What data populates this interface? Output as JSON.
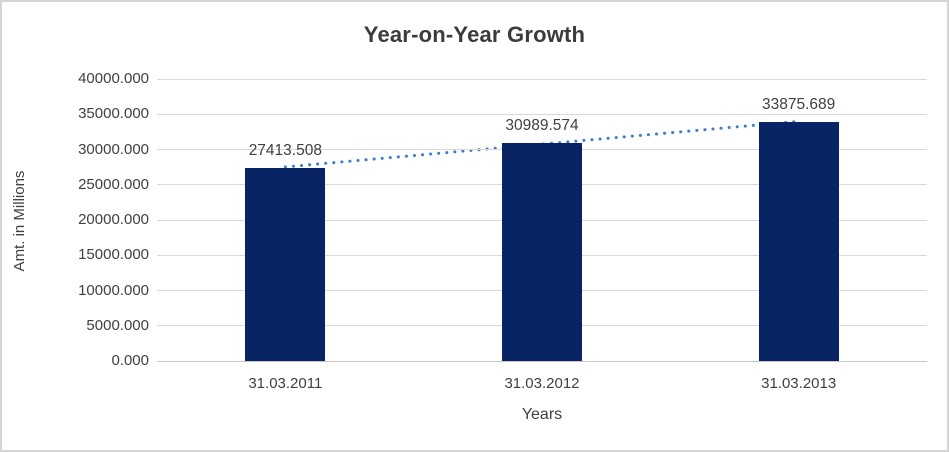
{
  "chart_data": {
    "type": "bar",
    "title": "Year-on-Year Growth",
    "xlabel": "Years",
    "ylabel": "Amt. in Millions",
    "categories": [
      "31.03.2011",
      "31.03.2012",
      "31.03.2013"
    ],
    "values": [
      27413.508,
      30989.574,
      33875.689
    ],
    "data_labels": [
      "27413.508",
      "30989.574",
      "33875.689"
    ],
    "ylim": [
      0,
      40000
    ],
    "ytick_step": 5000,
    "ytick_labels": [
      "0.000",
      "5000.000",
      "10000.000",
      "15000.000",
      "20000.000",
      "25000.000",
      "30000.000",
      "35000.000",
      "40000.000"
    ],
    "grid": true,
    "legend_position": "none",
    "bar_color": "#092464",
    "trendline": {
      "type": "linear",
      "style": "dotted",
      "color": "#3f7ec8"
    },
    "gridline_color": "#d9d9d9",
    "axis_line_color": "#c6c6c6",
    "text_color": "#404040",
    "title_color": "#3b3b3b",
    "background_color": "#ffffff",
    "border_color": "#d5d5d5"
  }
}
